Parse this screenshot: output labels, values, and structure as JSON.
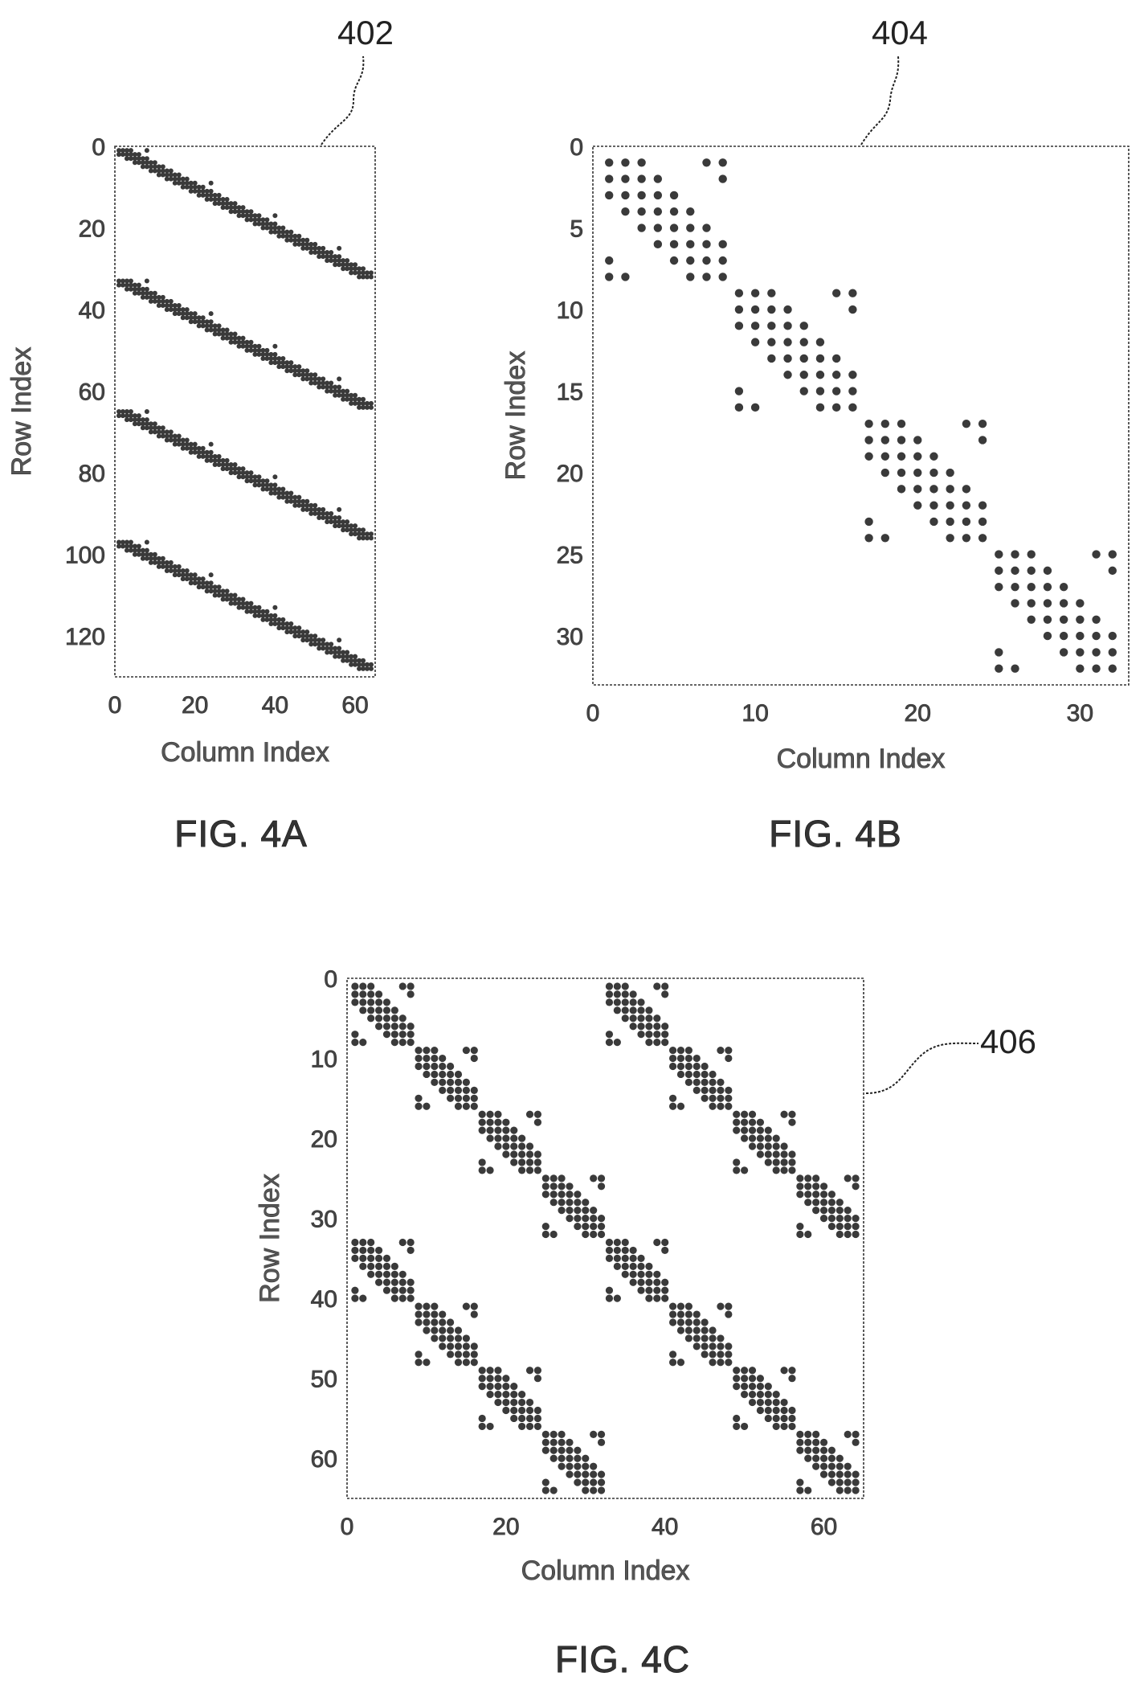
{
  "figures": [
    {
      "ref": "402",
      "caption": "FIG. 4A",
      "xlabel": "Column Index",
      "ylabel": "Row Index",
      "xticks": [
        "0",
        "20",
        "40",
        "60"
      ],
      "yticks": [
        "0",
        "20",
        "40",
        "60",
        "80",
        "100",
        "120"
      ]
    },
    {
      "ref": "404",
      "caption": "FIG. 4B",
      "xlabel": "Column Index",
      "ylabel": "Row Index",
      "xticks": [
        "0",
        "10",
        "20",
        "30"
      ],
      "yticks": [
        "0",
        "5",
        "10",
        "15",
        "20",
        "25",
        "30"
      ]
    },
    {
      "ref": "406",
      "caption": "FIG. 4C",
      "xlabel": "Column Index",
      "ylabel": "Row Index",
      "xticks": [
        "0",
        "20",
        "40",
        "60"
      ],
      "yticks": [
        "0",
        "10",
        "20",
        "30",
        "40",
        "50",
        "60"
      ]
    }
  ],
  "chart_data": [
    {
      "type": "scatter",
      "title": "",
      "xlabel": "Column Index",
      "ylabel": "Row Index",
      "xlim": [
        0,
        65
      ],
      "ylim": [
        130,
        0
      ],
      "y_axis_inverted": true,
      "grid": false,
      "pattern": "sparsity pattern: 4 repeated 32-row block bands, each a diagonal band of width ~3 running from column 1 to 64 (slope 1/2), with isolated outlier points every 8 rows"
    },
    {
      "type": "scatter",
      "title": "",
      "xlabel": "Column Index",
      "ylabel": "Row Index",
      "xlim": [
        0,
        33
      ],
      "ylim": [
        33,
        0
      ],
      "y_axis_inverted": true,
      "grid": false,
      "blocks": [
        {
          "rows": [
            1,
            8
          ],
          "cols": [
            1,
            8
          ]
        },
        {
          "rows": [
            9,
            16
          ],
          "cols": [
            9,
            16
          ]
        },
        {
          "rows": [
            17,
            24
          ],
          "cols": [
            17,
            24
          ]
        },
        {
          "rows": [
            25,
            32
          ],
          "cols": [
            25,
            32
          ]
        }
      ],
      "points": [
        [
          1,
          1
        ],
        [
          2,
          1
        ],
        [
          3,
          1
        ],
        [
          7,
          1
        ],
        [
          8,
          1
        ],
        [
          1,
          2
        ],
        [
          2,
          2
        ],
        [
          3,
          2
        ],
        [
          4,
          2
        ],
        [
          8,
          2
        ],
        [
          1,
          3
        ],
        [
          2,
          3
        ],
        [
          3,
          3
        ],
        [
          4,
          3
        ],
        [
          5,
          3
        ],
        [
          2,
          4
        ],
        [
          3,
          4
        ],
        [
          4,
          4
        ],
        [
          5,
          4
        ],
        [
          6,
          4
        ],
        [
          3,
          5
        ],
        [
          4,
          5
        ],
        [
          5,
          5
        ],
        [
          6,
          5
        ],
        [
          7,
          5
        ],
        [
          4,
          6
        ],
        [
          5,
          6
        ],
        [
          6,
          6
        ],
        [
          7,
          6
        ],
        [
          8,
          6
        ],
        [
          1,
          7
        ],
        [
          5,
          7
        ],
        [
          6,
          7
        ],
        [
          7,
          7
        ],
        [
          8,
          7
        ],
        [
          1,
          8
        ],
        [
          2,
          8
        ],
        [
          6,
          8
        ],
        [
          7,
          8
        ],
        [
          8,
          8
        ],
        [
          9,
          9
        ],
        [
          10,
          9
        ],
        [
          11,
          9
        ],
        [
          15,
          9
        ],
        [
          16,
          9
        ],
        [
          9,
          10
        ],
        [
          10,
          10
        ],
        [
          11,
          10
        ],
        [
          12,
          10
        ],
        [
          16,
          10
        ],
        [
          9,
          11
        ],
        [
          10,
          11
        ],
        [
          11,
          11
        ],
        [
          12,
          11
        ],
        [
          13,
          11
        ],
        [
          10,
          12
        ],
        [
          11,
          12
        ],
        [
          12,
          12
        ],
        [
          13,
          12
        ],
        [
          14,
          12
        ],
        [
          11,
          13
        ],
        [
          12,
          13
        ],
        [
          13,
          13
        ],
        [
          14,
          13
        ],
        [
          15,
          13
        ],
        [
          12,
          14
        ],
        [
          13,
          14
        ],
        [
          14,
          14
        ],
        [
          15,
          14
        ],
        [
          16,
          14
        ],
        [
          9,
          15
        ],
        [
          13,
          15
        ],
        [
          14,
          15
        ],
        [
          15,
          15
        ],
        [
          16,
          15
        ],
        [
          9,
          16
        ],
        [
          10,
          16
        ],
        [
          14,
          16
        ],
        [
          15,
          16
        ],
        [
          16,
          16
        ],
        [
          17,
          17
        ],
        [
          18,
          17
        ],
        [
          19,
          17
        ],
        [
          23,
          17
        ],
        [
          24,
          17
        ],
        [
          17,
          18
        ],
        [
          18,
          18
        ],
        [
          19,
          18
        ],
        [
          20,
          18
        ],
        [
          24,
          18
        ],
        [
          17,
          19
        ],
        [
          18,
          19
        ],
        [
          19,
          19
        ],
        [
          20,
          19
        ],
        [
          21,
          19
        ],
        [
          18,
          20
        ],
        [
          19,
          20
        ],
        [
          20,
          20
        ],
        [
          21,
          20
        ],
        [
          22,
          20
        ],
        [
          19,
          21
        ],
        [
          20,
          21
        ],
        [
          21,
          21
        ],
        [
          22,
          21
        ],
        [
          23,
          21
        ],
        [
          20,
          22
        ],
        [
          21,
          22
        ],
        [
          22,
          22
        ],
        [
          23,
          22
        ],
        [
          24,
          22
        ],
        [
          17,
          23
        ],
        [
          21,
          23
        ],
        [
          22,
          23
        ],
        [
          23,
          23
        ],
        [
          24,
          23
        ],
        [
          17,
          24
        ],
        [
          18,
          24
        ],
        [
          22,
          24
        ],
        [
          23,
          24
        ],
        [
          24,
          24
        ],
        [
          25,
          25
        ],
        [
          26,
          25
        ],
        [
          27,
          25
        ],
        [
          31,
          25
        ],
        [
          32,
          25
        ],
        [
          25,
          26
        ],
        [
          26,
          26
        ],
        [
          27,
          26
        ],
        [
          28,
          26
        ],
        [
          32,
          26
        ],
        [
          25,
          27
        ],
        [
          26,
          27
        ],
        [
          27,
          27
        ],
        [
          28,
          27
        ],
        [
          29,
          27
        ],
        [
          26,
          28
        ],
        [
          27,
          28
        ],
        [
          28,
          28
        ],
        [
          29,
          28
        ],
        [
          30,
          28
        ],
        [
          27,
          29
        ],
        [
          28,
          29
        ],
        [
          29,
          29
        ],
        [
          30,
          29
        ],
        [
          31,
          29
        ],
        [
          28,
          30
        ],
        [
          29,
          30
        ],
        [
          30,
          30
        ],
        [
          31,
          30
        ],
        [
          32,
          30
        ],
        [
          25,
          31
        ],
        [
          29,
          31
        ],
        [
          30,
          31
        ],
        [
          31,
          31
        ],
        [
          32,
          31
        ],
        [
          25,
          32
        ],
        [
          26,
          32
        ],
        [
          30,
          32
        ],
        [
          31,
          32
        ],
        [
          32,
          32
        ]
      ]
    },
    {
      "type": "scatter",
      "title": "",
      "xlabel": "Column Index",
      "ylabel": "Row Index",
      "xlim": [
        0,
        65
      ],
      "ylim": [
        65,
        0
      ],
      "y_axis_inverted": true,
      "grid": false,
      "pattern": "the 32x32 block-diagonal pattern of FIG. 4B tiled 2x2 (rows and columns offset by 0 and 32)"
    }
  ]
}
